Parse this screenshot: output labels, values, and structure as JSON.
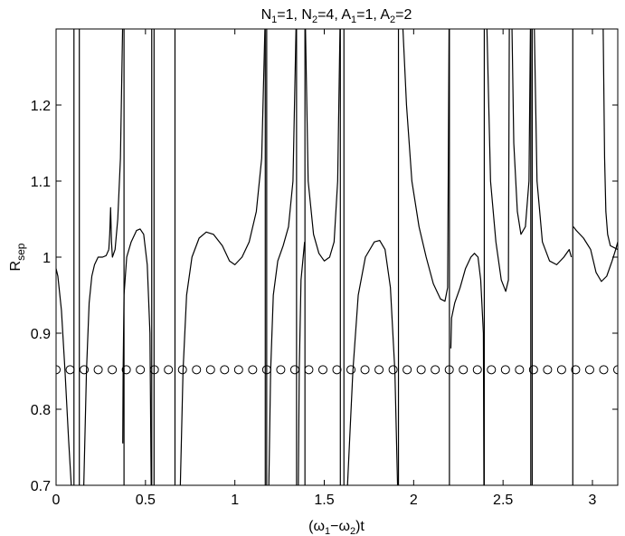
{
  "chart_data": {
    "type": "line",
    "title": {
      "base": [
        "N",
        "=1, N",
        "=4, A",
        "=1, A",
        "=2"
      ],
      "subs": [
        "1",
        "2",
        "1",
        "2"
      ]
    },
    "xlabel": {
      "parts": [
        "(ω",
        "−ω",
        ")t"
      ],
      "subs": [
        "1",
        "2"
      ]
    },
    "ylabel": {
      "base": "R",
      "sub": "sep"
    },
    "xlim": [
      0,
      3.1416
    ],
    "ylim": [
      0.7,
      1.3
    ],
    "xticks": [
      0,
      0.5,
      1,
      1.5,
      2,
      2.5,
      3
    ],
    "xtick_labels": [
      "0",
      "0.5",
      "1",
      "1.5",
      "2",
      "2.5",
      "3"
    ],
    "yticks": [
      0.7,
      0.8,
      0.9,
      1.0,
      1.1,
      1.2
    ],
    "ytick_labels": [
      "0.7",
      "0.8",
      "0.9",
      "1",
      "1.1",
      "1.2"
    ],
    "grid": false,
    "line_color": "#000000",
    "marker_series": {
      "marker": "circle",
      "y": 0.852,
      "x_start": 0,
      "x_step": 0.07854,
      "count": 41
    },
    "vertical_lines": [
      0.1,
      0.13,
      0.38,
      0.535,
      0.548,
      0.665,
      1.17,
      1.178,
      1.345,
      1.392,
      1.59,
      1.61,
      1.915,
      2.2,
      2.395,
      2.655,
      2.663,
      2.89
    ],
    "curve_segments": [
      [
        [
          0,
          0.985
        ],
        [
          0.01,
          0.975
        ],
        [
          0.03,
          0.93
        ],
        [
          0.05,
          0.85
        ],
        [
          0.07,
          0.76
        ],
        [
          0.085,
          0.7
        ]
      ],
      [
        [
          0.155,
          0.7
        ],
        [
          0.17,
          0.85
        ],
        [
          0.185,
          0.94
        ],
        [
          0.2,
          0.975
        ],
        [
          0.215,
          0.99
        ],
        [
          0.235,
          1.0
        ],
        [
          0.26,
          1.0
        ],
        [
          0.28,
          1.002
        ],
        [
          0.295,
          1.01
        ]
      ],
      [
        [
          0.295,
          1.01
        ],
        [
          0.3,
          1.03
        ],
        [
          0.305,
          1.065
        ],
        [
          0.31,
          1.02
        ],
        [
          0.315,
          1.0
        ],
        [
          0.33,
          1.01
        ],
        [
          0.345,
          1.05
        ],
        [
          0.36,
          1.13
        ],
        [
          0.372,
          1.3
        ]
      ],
      [
        [
          0.373,
          0.755
        ],
        [
          0.375,
          0.85
        ],
        [
          0.38,
          0.95
        ],
        [
          0.395,
          1.0
        ],
        [
          0.42,
          1.02
        ],
        [
          0.45,
          1.035
        ],
        [
          0.47,
          1.037
        ],
        [
          0.49,
          1.03
        ],
        [
          0.51,
          0.99
        ],
        [
          0.525,
          0.9
        ],
        [
          0.532,
          0.7
        ]
      ],
      [
        [
          0.695,
          0.7
        ],
        [
          0.71,
          0.85
        ],
        [
          0.73,
          0.95
        ],
        [
          0.76,
          1.0
        ],
        [
          0.8,
          1.025
        ],
        [
          0.84,
          1.033
        ],
        [
          0.88,
          1.03
        ],
        [
          0.93,
          1.015
        ],
        [
          0.97,
          0.995
        ],
        [
          1.0,
          0.99
        ],
        [
          1.04,
          1.0
        ],
        [
          1.08,
          1.02
        ],
        [
          1.12,
          1.06
        ],
        [
          1.15,
          1.13
        ],
        [
          1.168,
          1.3
        ]
      ],
      [
        [
          1.19,
          0.7
        ],
        [
          1.2,
          0.85
        ],
        [
          1.215,
          0.95
        ],
        [
          1.24,
          0.995
        ],
        [
          1.27,
          1.015
        ],
        [
          1.3,
          1.04
        ],
        [
          1.325,
          1.1
        ],
        [
          1.342,
          1.3
        ]
      ],
      [
        [
          1.355,
          0.7
        ],
        [
          1.36,
          0.85
        ],
        [
          1.37,
          0.97
        ],
        [
          1.39,
          1.02
        ]
      ],
      [
        [
          1.395,
          1.3
        ],
        [
          1.41,
          1.1
        ],
        [
          1.44,
          1.03
        ],
        [
          1.47,
          1.005
        ],
        [
          1.5,
          0.995
        ],
        [
          1.53,
          1.0
        ],
        [
          1.555,
          1.02
        ],
        [
          1.575,
          1.1
        ],
        [
          1.588,
          1.3
        ]
      ],
      [
        [
          1.63,
          0.7
        ],
        [
          1.66,
          0.85
        ],
        [
          1.69,
          0.95
        ],
        [
          1.73,
          1.0
        ],
        [
          1.78,
          1.02
        ],
        [
          1.81,
          1.022
        ],
        [
          1.84,
          1.01
        ],
        [
          1.87,
          0.96
        ],
        [
          1.895,
          0.85
        ],
        [
          1.91,
          0.7
        ]
      ],
      [
        [
          1.94,
          1.3
        ],
        [
          1.96,
          1.2
        ],
        [
          1.99,
          1.1
        ],
        [
          2.03,
          1.04
        ],
        [
          2.07,
          1.0
        ],
        [
          2.11,
          0.965
        ],
        [
          2.15,
          0.945
        ],
        [
          2.175,
          0.942
        ],
        [
          2.19,
          0.96
        ],
        [
          2.198,
          1.3
        ]
      ],
      [
        [
          2.208,
          0.88
        ],
        [
          2.212,
          0.92
        ],
        [
          2.23,
          0.94
        ],
        [
          2.26,
          0.96
        ],
        [
          2.29,
          0.985
        ],
        [
          2.32,
          1.0
        ],
        [
          2.34,
          1.005
        ],
        [
          2.36,
          1.0
        ],
        [
          2.375,
          0.97
        ],
        [
          2.39,
          0.9
        ],
        [
          2.393,
          0.7
        ]
      ],
      [
        [
          2.41,
          1.3
        ],
        [
          2.43,
          1.1
        ],
        [
          2.46,
          1.02
        ],
        [
          2.49,
          0.97
        ],
        [
          2.515,
          0.955
        ],
        [
          2.53,
          0.97
        ],
        [
          2.535,
          1.3
        ]
      ],
      [
        [
          2.55,
          1.3
        ],
        [
          2.56,
          1.15
        ],
        [
          2.58,
          1.06
        ],
        [
          2.6,
          1.03
        ],
        [
          2.625,
          1.04
        ],
        [
          2.645,
          1.1
        ],
        [
          2.653,
          1.3
        ]
      ],
      [
        [
          2.675,
          1.3
        ],
        [
          2.69,
          1.1
        ],
        [
          2.72,
          1.02
        ],
        [
          2.76,
          0.995
        ],
        [
          2.8,
          0.99
        ],
        [
          2.84,
          1.0
        ],
        [
          2.87,
          1.01
        ],
        [
          2.882,
          1.0
        ]
      ],
      [
        [
          2.893,
          1.04
        ],
        [
          2.91,
          1.035
        ],
        [
          2.95,
          1.025
        ],
        [
          2.99,
          1.01
        ],
        [
          3.02,
          0.98
        ],
        [
          3.05,
          0.968
        ],
        [
          3.08,
          0.975
        ],
        [
          3.11,
          0.995
        ],
        [
          3.13,
          1.01
        ],
        [
          3.1416,
          1.02
        ]
      ],
      [
        [
          3.06,
          1.3
        ],
        [
          3.068,
          1.13
        ],
        [
          3.075,
          1.06
        ],
        [
          3.085,
          1.03
        ],
        [
          3.1,
          1.015
        ],
        [
          3.1416,
          1.01
        ]
      ]
    ]
  }
}
